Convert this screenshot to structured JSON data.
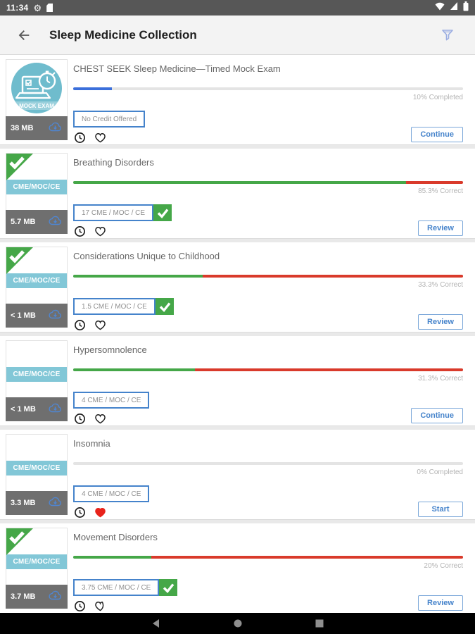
{
  "status_bar": {
    "time": "11:34"
  },
  "header": {
    "title": "Sleep Medicine Collection"
  },
  "thumb_label": "CME/MOC/CE",
  "mock_exam_label": "MOCK EXAM",
  "items": [
    {
      "title": "CHEST SEEK Sleep Medicine—Timed Mock Exam",
      "size": "38 MB",
      "badge": "No Credit Offered",
      "badge_check": false,
      "progress_text": "10% Completed",
      "style": "completed",
      "progress_pct": 10,
      "button": "Continue",
      "favorite": false,
      "thumb_complete": false
    },
    {
      "title": "Breathing Disorders",
      "size": "5.7 MB",
      "badge": "17 CME / MOC / CE",
      "badge_check": true,
      "progress_text": "85.3% Correct",
      "style": "correct",
      "progress_pct": 85.3,
      "button": "Review",
      "favorite": false,
      "thumb_complete": true
    },
    {
      "title": "Considerations Unique to Childhood",
      "size": "< 1 MB",
      "badge": "1.5 CME / MOC / CE",
      "badge_check": true,
      "progress_text": "33.3% Correct",
      "style": "correct",
      "progress_pct": 33.3,
      "button": "Review",
      "favorite": false,
      "thumb_complete": true
    },
    {
      "title": "Hypersomnolence",
      "size": "< 1 MB",
      "badge": "4 CME / MOC / CE",
      "badge_check": false,
      "progress_text": "31.3% Correct",
      "style": "correct",
      "progress_pct": 31.3,
      "button": "Continue",
      "favorite": false,
      "thumb_complete": false
    },
    {
      "title": "Insomnia",
      "size": "3.3 MB",
      "badge": "4 CME / MOC / CE",
      "badge_check": false,
      "progress_text": "0% Completed",
      "style": "completed",
      "progress_pct": 0,
      "button": "Start",
      "favorite": true,
      "thumb_complete": false
    },
    {
      "title": "Movement Disorders",
      "size": "3.7 MB",
      "badge": "3.75 CME / MOC / CE",
      "badge_check": true,
      "progress_text": "20% Correct",
      "style": "correct",
      "progress_pct": 20,
      "button": "Review",
      "favorite": false,
      "thumb_complete": true
    }
  ],
  "colors": {
    "accent_blue": "#4583cb",
    "progress_blue": "#3b6fdb",
    "green": "#45a748",
    "red": "#d93a2b",
    "heart_red": "#e8231b",
    "teal": "#6fbccd",
    "band_teal": "#82c7d7",
    "thumb_gray": "#6f6f6f"
  }
}
